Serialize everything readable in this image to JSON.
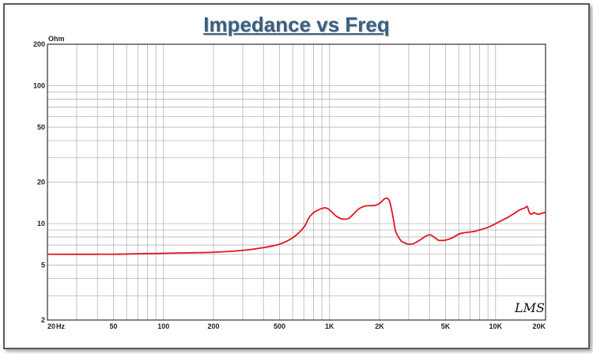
{
  "chart_data": {
    "type": "line",
    "title": "Impedance vs Freq",
    "xlabel": "",
    "ylabel": "",
    "y_unit": "Ohm",
    "x_unit": "Hz",
    "x_scale": "log",
    "y_scale": "log",
    "xlim": [
      20,
      20000
    ],
    "ylim": [
      2,
      200
    ],
    "grid": true,
    "line_color": "#e0161e",
    "watermark": "LMS",
    "x_ticks": [
      {
        "value": 20,
        "label": "20"
      },
      {
        "value": 50,
        "label": "50"
      },
      {
        "value": 100,
        "label": "100"
      },
      {
        "value": 200,
        "label": "200"
      },
      {
        "value": 500,
        "label": "500"
      },
      {
        "value": 1000,
        "label": "1K"
      },
      {
        "value": 2000,
        "label": "2K"
      },
      {
        "value": 5000,
        "label": "5K"
      },
      {
        "value": 10000,
        "label": "10K"
      },
      {
        "value": 20000,
        "label": "20K"
      }
    ],
    "y_ticks": [
      {
        "value": 200,
        "label": "200"
      },
      {
        "value": 100,
        "label": "100"
      },
      {
        "value": 50,
        "label": "50"
      },
      {
        "value": 20,
        "label": "20"
      },
      {
        "value": 10,
        "label": "10"
      },
      {
        "value": 5,
        "label": "5"
      },
      {
        "value": 2,
        "label": "2"
      }
    ],
    "series": [
      {
        "x": [
          20,
          50,
          100,
          200,
          300,
          400,
          500,
          600,
          700,
          750,
          800,
          850,
          900,
          950,
          1000,
          1100,
          1200,
          1300,
          1400,
          1500,
          1600,
          1700,
          1800,
          1900,
          2000,
          2100,
          2200,
          2300,
          2400,
          2450,
          2500,
          2600,
          2700,
          2800,
          3000,
          3200,
          3500,
          4000,
          4500,
          4700,
          5000,
          5500,
          6000,
          6500,
          7000,
          7500,
          8000,
          9000,
          10000,
          11000,
          12000,
          13000,
          14000,
          15000,
          15500,
          16000,
          16500,
          17000,
          18000,
          19000,
          20000
        ],
        "y": [
          6.0,
          6.0,
          6.1,
          6.2,
          6.4,
          6.7,
          7.1,
          7.9,
          9.4,
          11.0,
          12.0,
          12.5,
          12.9,
          13.0,
          12.6,
          11.3,
          10.8,
          10.9,
          11.8,
          12.8,
          13.3,
          13.5,
          13.5,
          13.6,
          14.0,
          14.8,
          15.3,
          14.5,
          11.5,
          10.0,
          8.8,
          8.0,
          7.5,
          7.3,
          7.1,
          7.15,
          7.6,
          8.3,
          7.6,
          7.55,
          7.6,
          7.9,
          8.4,
          8.6,
          8.7,
          8.8,
          9.0,
          9.4,
          10.0,
          10.6,
          11.2,
          11.9,
          12.6,
          13.0,
          13.3,
          12.0,
          11.7,
          12.0,
          11.7,
          11.9,
          12.1
        ]
      }
    ]
  }
}
